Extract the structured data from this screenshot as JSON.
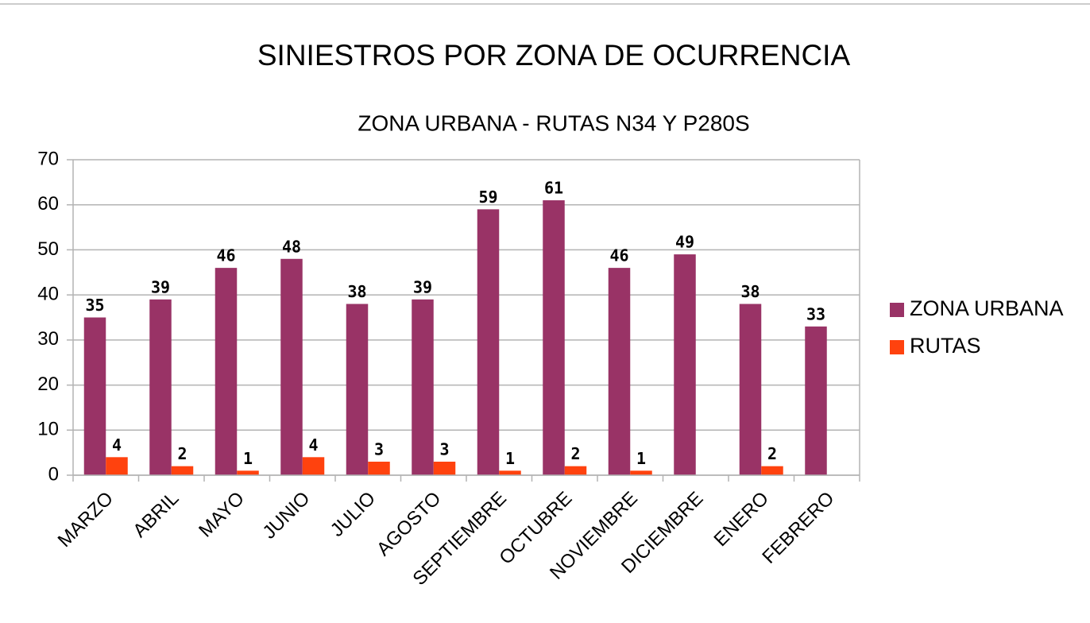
{
  "chart_data": {
    "type": "bar",
    "title": "SINIESTROS POR ZONA DE OCURRENCIA",
    "subtitle": "ZONA URBANA - RUTAS N34 Y P280S",
    "categories": [
      "MARZO",
      "ABRIL",
      "MAYO",
      "JUNIO",
      "JULIO",
      "AGOSTO",
      "SEPTIEMBRE",
      "OCTUBRE",
      "NOVIEMBRE",
      "DICIEMBRE",
      "ENERO",
      "FEBRERO"
    ],
    "series": [
      {
        "name": "ZONA URBANA",
        "color": "#993366",
        "values": [
          35,
          39,
          46,
          48,
          38,
          39,
          59,
          61,
          46,
          49,
          38,
          33
        ]
      },
      {
        "name": "RUTAS",
        "color": "#ff420e",
        "values": [
          4,
          2,
          1,
          4,
          3,
          3,
          1,
          2,
          1,
          null,
          2,
          null
        ]
      }
    ],
    "ylim": [
      0,
      70
    ],
    "yticks": [
      0,
      10,
      20,
      30,
      40,
      50,
      60,
      70
    ],
    "grid": true,
    "legend": "right"
  }
}
